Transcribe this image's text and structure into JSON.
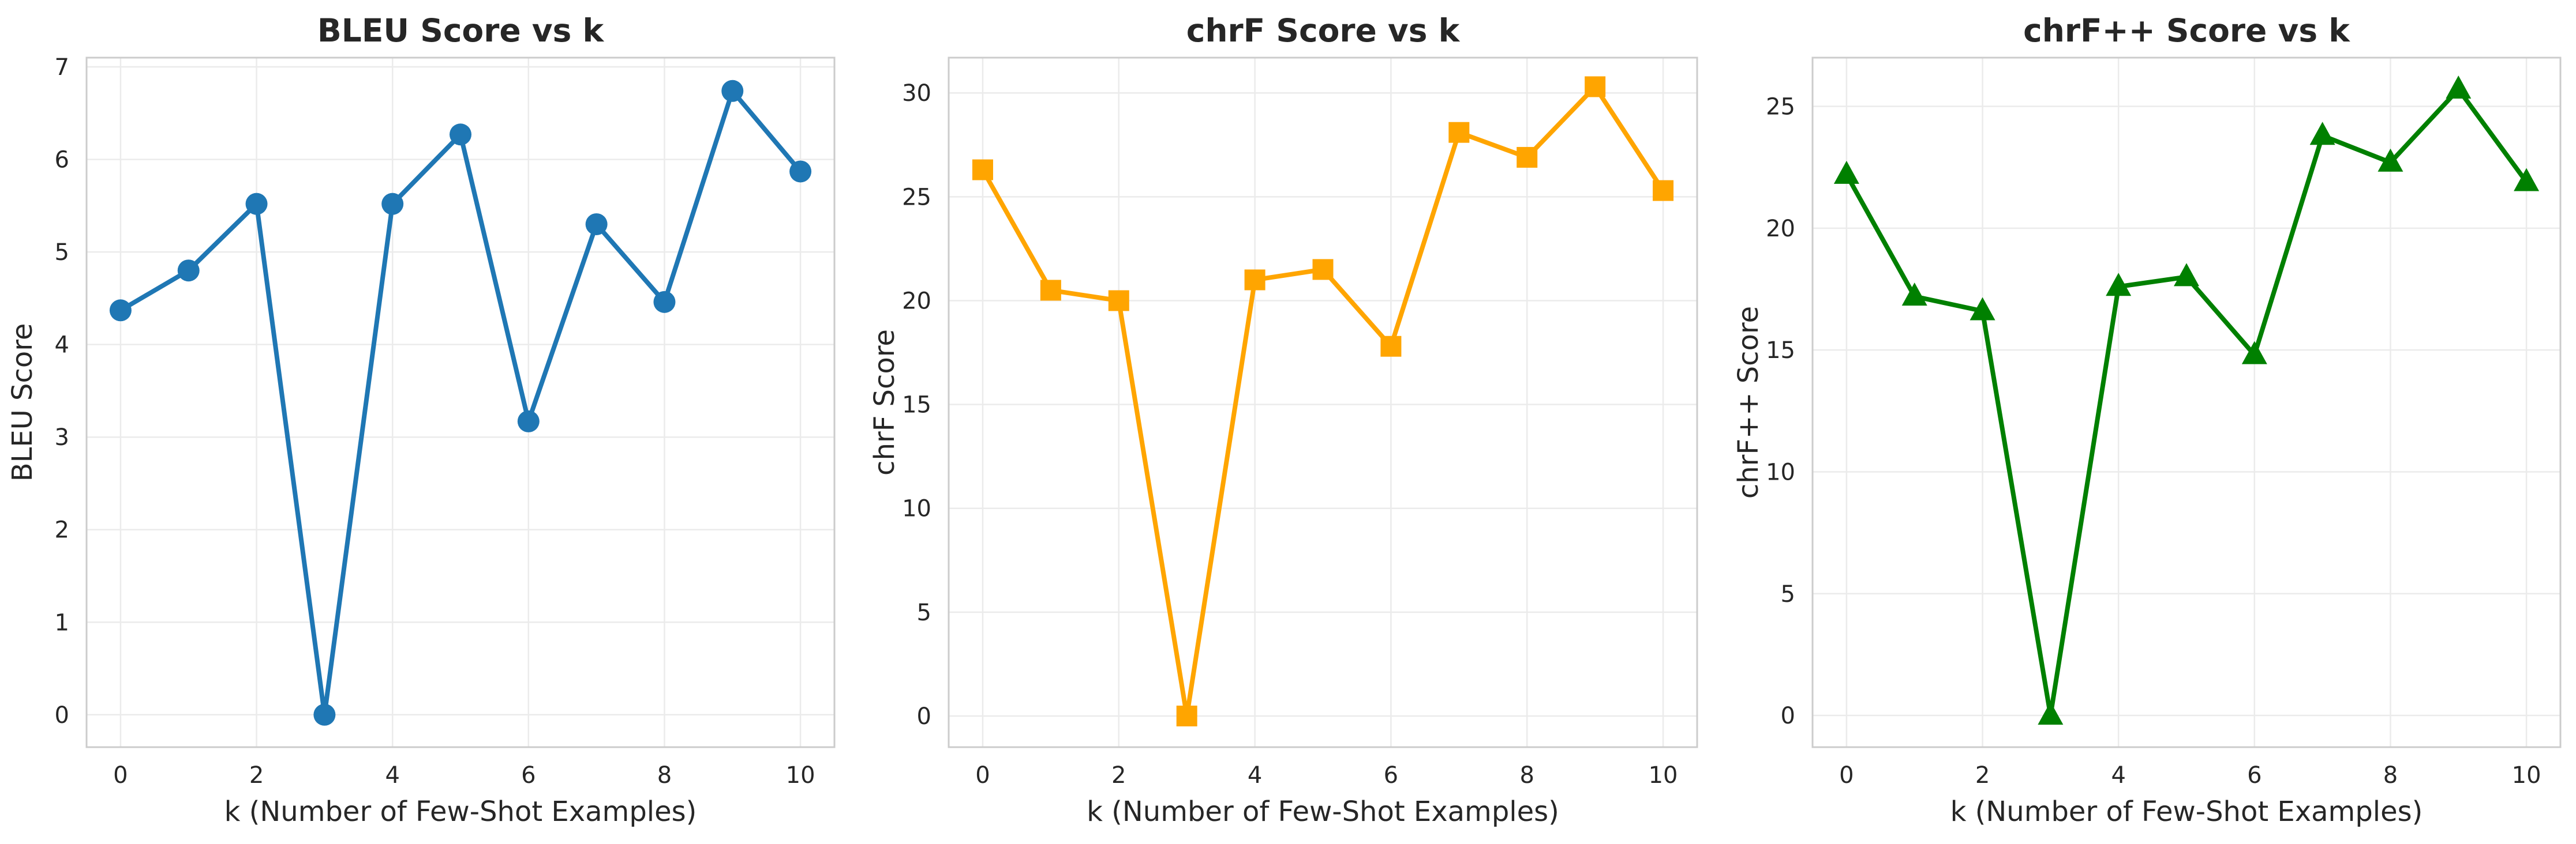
{
  "figure": {
    "background": "#ffffff"
  },
  "chart_data": [
    {
      "type": "line",
      "title": "BLEU Score vs k",
      "xlabel": "k (Number of Few-Shot Examples)",
      "ylabel": "BLEU Score",
      "x": [
        0,
        1,
        2,
        3,
        4,
        5,
        6,
        7,
        8,
        9,
        10
      ],
      "series": [
        {
          "values": [
            4.37,
            4.8,
            5.52,
            0.0,
            5.52,
            6.27,
            3.17,
            5.3,
            4.46,
            6.74,
            5.87
          ],
          "color": "#1f77b4",
          "marker": "circle"
        }
      ],
      "xlim": [
        -0.5,
        10.5
      ],
      "ylim": [
        -0.35,
        7.1
      ],
      "xticks": [
        "0",
        "2",
        "4",
        "6",
        "8",
        "10"
      ],
      "yticks": [
        "0",
        "1",
        "2",
        "3",
        "4",
        "5",
        "6",
        "7"
      ],
      "grid": true
    },
    {
      "type": "line",
      "title": "chrF Score vs k",
      "xlabel": "k (Number of Few-Shot Examples)",
      "ylabel": "chrF Score",
      "x": [
        0,
        1,
        2,
        3,
        4,
        5,
        6,
        7,
        8,
        9,
        10
      ],
      "series": [
        {
          "values": [
            26.3,
            20.5,
            20.0,
            0.0,
            21.0,
            21.5,
            17.8,
            28.1,
            26.9,
            30.3,
            25.3
          ],
          "color": "#ffa500",
          "marker": "square"
        }
      ],
      "xlim": [
        -0.5,
        10.5
      ],
      "ylim": [
        -1.5,
        31.7
      ],
      "xticks": [
        "0",
        "2",
        "4",
        "6",
        "8",
        "10"
      ],
      "yticks": [
        "0",
        "5",
        "10",
        "15",
        "20",
        "25",
        "30"
      ],
      "grid": true
    },
    {
      "type": "line",
      "title": "chrF++ Score vs k",
      "xlabel": "k (Number of Few-Shot Examples)",
      "ylabel": "chrF++ Score",
      "x": [
        0,
        1,
        2,
        3,
        4,
        5,
        6,
        7,
        8,
        9,
        10
      ],
      "series": [
        {
          "values": [
            22.2,
            17.2,
            16.6,
            0.0,
            17.6,
            18.0,
            14.8,
            23.8,
            22.7,
            25.7,
            21.9
          ],
          "color": "#008000",
          "marker": "triangle"
        }
      ],
      "xlim": [
        -0.5,
        10.5
      ],
      "ylim": [
        -1.3,
        27.0
      ],
      "xticks": [
        "0",
        "2",
        "4",
        "6",
        "8",
        "10"
      ],
      "yticks": [
        "0",
        "5",
        "10",
        "15",
        "20",
        "25"
      ],
      "grid": true
    }
  ]
}
